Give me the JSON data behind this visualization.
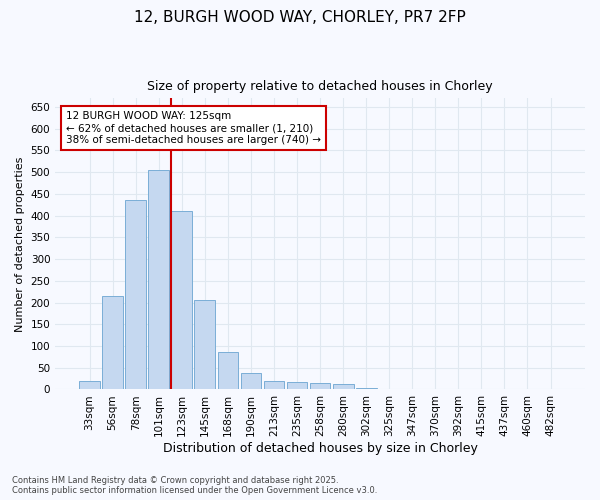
{
  "title_line1": "12, BURGH WOOD WAY, CHORLEY, PR7 2FP",
  "title_line2": "Size of property relative to detached houses in Chorley",
  "xlabel": "Distribution of detached houses by size in Chorley",
  "ylabel": "Number of detached properties",
  "categories": [
    "33sqm",
    "56sqm",
    "78sqm",
    "101sqm",
    "123sqm",
    "145sqm",
    "168sqm",
    "190sqm",
    "213sqm",
    "235sqm",
    "258sqm",
    "280sqm",
    "302sqm",
    "325sqm",
    "347sqm",
    "370sqm",
    "392sqm",
    "415sqm",
    "437sqm",
    "460sqm",
    "482sqm"
  ],
  "values": [
    20,
    215,
    435,
    505,
    410,
    207,
    86,
    38,
    20,
    17,
    15,
    12,
    4,
    1,
    1,
    0,
    0,
    0,
    0,
    0,
    2
  ],
  "bar_color": "#c5d8f0",
  "bar_edge_color": "#7aaed6",
  "vline_color": "#cc0000",
  "vline_index": 4,
  "ylim": [
    0,
    670
  ],
  "yticks": [
    0,
    50,
    100,
    150,
    200,
    250,
    300,
    350,
    400,
    450,
    500,
    550,
    600,
    650
  ],
  "annotation_text_line1": "12 BURGH WOOD WAY: 125sqm",
  "annotation_text_line2": "← 62% of detached houses are smaller (1, 210)",
  "annotation_text_line3": "38% of semi-detached houses are larger (740) →",
  "annotation_box_color": "#ffffff",
  "annotation_border_color": "#cc0000",
  "footer_text": "Contains HM Land Registry data © Crown copyright and database right 2025.\nContains public sector information licensed under the Open Government Licence v3.0.",
  "background_color": "#f7f9ff",
  "grid_color": "#e0e8f0",
  "title_fontsize": 11,
  "subtitle_fontsize": 9,
  "tick_fontsize": 7.5,
  "ylabel_fontsize": 8,
  "xlabel_fontsize": 9
}
